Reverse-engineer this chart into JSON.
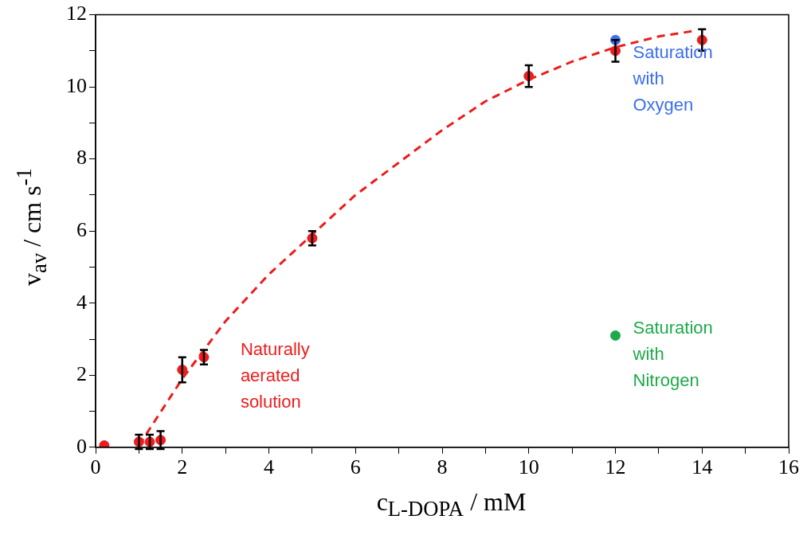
{
  "chart_data": {
    "type": "scatter",
    "xlabel": "c$_{L-DOPA}$ / mM",
    "ylabel": "v$_{av}$ / cm s$^{-1}$",
    "xlim": [
      0,
      16
    ],
    "ylim": [
      0,
      12
    ],
    "xticks": [
      0,
      {
        "value": 1,
        "label": null
      },
      2,
      {
        "value": 3,
        "label": null
      },
      4,
      {
        "value": 5,
        "label": null
      },
      6,
      {
        "value": 7,
        "label": null
      },
      8,
      {
        "value": 9,
        "label": null
      },
      10,
      {
        "value": 11,
        "label": null
      },
      12,
      {
        "value": 13,
        "label": null
      },
      14,
      {
        "value": 15,
        "label": null
      },
      16
    ],
    "yticks": [
      0,
      {
        "value": 1,
        "label": null
      },
      2,
      {
        "value": 3,
        "label": null
      },
      4,
      {
        "value": 5,
        "label": null
      },
      6,
      {
        "value": 7,
        "label": null
      },
      8,
      {
        "value": 9,
        "label": null
      },
      10,
      {
        "value": 11,
        "label": null
      },
      12
    ],
    "grid": false,
    "legend": false,
    "marker": "circle",
    "series": [
      {
        "name": "Naturally aerated solution",
        "color": "#ee1c1c",
        "x": [
          0.2,
          1,
          1.25,
          1.5,
          2,
          2.5,
          5,
          10,
          12,
          14
        ],
        "values": [
          0.05,
          0.15,
          0.15,
          0.2,
          2.15,
          2.5,
          5.8,
          10.3,
          11.0,
          11.3
        ],
        "errors": [
          null,
          0.2,
          0.2,
          0.25,
          0.35,
          0.2,
          0.2,
          0.3,
          0.3,
          0.3
        ]
      },
      {
        "name": "Saturation with Oxygen",
        "color": "#3b6ef0",
        "x": [
          12
        ],
        "values": [
          11.3
        ]
      },
      {
        "name": "Saturation with Nitrogen",
        "color": "#1faa4a",
        "x": [
          12
        ],
        "values": [
          3.1
        ]
      },
      {
        "type": "line",
        "color": "#ee1c1c",
        "line_style": "dashed",
        "marker": "none",
        "x": [
          1,
          2,
          3,
          4,
          5,
          6,
          7,
          8,
          9,
          10,
          11,
          12,
          13,
          13.8
        ],
        "values": [
          0.05,
          1.9,
          3.5,
          4.8,
          5.9,
          7.0,
          7.9,
          8.8,
          9.6,
          10.2,
          10.7,
          11.1,
          11.4,
          11.55
        ]
      }
    ]
  }
}
